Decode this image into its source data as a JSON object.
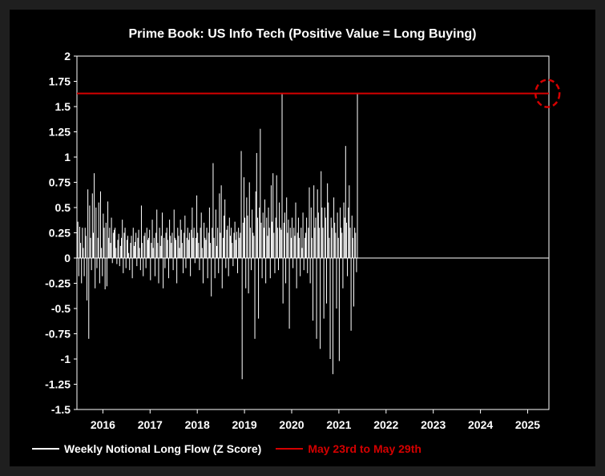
{
  "chart_data": {
    "type": "bar",
    "title": "Prime Book: US Info Tech (Positive Value = Long Buying)",
    "xlabel": "",
    "ylabel": "",
    "ylim": [
      -1.5,
      2
    ],
    "yticks": [
      -1.5,
      -1.25,
      -1,
      -0.75,
      -0.5,
      -0.25,
      0,
      0.25,
      0.5,
      0.75,
      1,
      1.25,
      1.5,
      1.75,
      2
    ],
    "ytick_labels": [
      "-1.5",
      "-1.25",
      "-1",
      "-0.75",
      "-0.5",
      "-0.25",
      "0",
      "0.25",
      "0.5",
      "0.75",
      "1",
      "1.25",
      "1.5",
      "1.75",
      "2"
    ],
    "xlim": [
      2015.45,
      2025.45
    ],
    "xticks": [
      2016,
      2017,
      2018,
      2019,
      2020,
      2021,
      2022,
      2023,
      2024,
      2025
    ],
    "xtick_labels": [
      "2016",
      "2017",
      "2018",
      "2019",
      "2020",
      "2021",
      "2022",
      "2023",
      "2024",
      "2025"
    ],
    "grid": false,
    "legend_position": "bottom",
    "series": [
      {
        "name": "Weekly Notional Long Flow (Z Score)",
        "color": "#ffffff",
        "x_start": 2015.47,
        "x_step": 0.01923,
        "values": [
          0.36,
          -0.18,
          0.31,
          0.15,
          -0.25,
          0.3,
          0.1,
          -0.18,
          0.3,
          0.22,
          -0.42,
          0.68,
          -0.8,
          0.52,
          0.2,
          -0.12,
          0.64,
          0.25,
          0.84,
          -0.3,
          0.5,
          -0.1,
          0.2,
          0.55,
          -0.25,
          0.66,
          0.1,
          -0.18,
          0.44,
          0.3,
          -0.31,
          0.35,
          -0.28,
          0.56,
          0.2,
          0.3,
          0.15,
          0.4,
          -0.05,
          0.25,
          0.28,
          0.3,
          0.1,
          -0.06,
          0.18,
          0.24,
          -0.08,
          0.12,
          0.2,
          0.38,
          -0.15,
          0.25,
          0.3,
          -0.1,
          0.18,
          0.22,
          0.05,
          -0.12,
          0.15,
          0.22,
          -0.2,
          0.3,
          0.12,
          0.16,
          0.25,
          -0.08,
          0.2,
          0.28,
          0.1,
          -0.12,
          0.52,
          0.15,
          -0.18,
          0.22,
          0.25,
          -0.1,
          0.3,
          0.18,
          0.2,
          0.28,
          -0.22,
          0.15,
          0.38,
          0.1,
          0.2,
          -0.18,
          0.25,
          0.48,
          0.15,
          -0.25,
          0.3,
          0.12,
          0.22,
          0.45,
          -0.3,
          0.2,
          -0.1,
          0.25,
          0.3,
          0.18,
          -0.2,
          0.38,
          0.22,
          0.15,
          0.25,
          -0.12,
          0.48,
          0.2,
          0.18,
          -0.25,
          0.3,
          0.22,
          0.1,
          0.38,
          0.28,
          0.15,
          -0.15,
          0.25,
          0.42,
          -0.1,
          0.2,
          0.3,
          0.18,
          0.25,
          -0.18,
          0.28,
          0.5,
          0.2,
          0.3,
          -0.05,
          0.2,
          0.62,
          0.25,
          0.15,
          -0.12,
          0.3,
          0.45,
          0.1,
          -0.25,
          0.35,
          0.2,
          0.18,
          0.3,
          -0.2,
          0.25,
          0.5,
          0.15,
          -0.38,
          0.3,
          0.94,
          0.2,
          -0.2,
          0.48,
          0.12,
          0.3,
          -0.15,
          0.64,
          0.25,
          0.72,
          -0.3,
          0.2,
          0.42,
          0.58,
          -0.1,
          0.28,
          0.32,
          -0.18,
          0.4,
          0.22,
          0.3,
          0.15,
          -0.08,
          0.25,
          0.36,
          0.18,
          0.26,
          -0.15,
          0.3,
          0.2,
          0.25,
          1.06,
          -1.2,
          0.35,
          0.8,
          0.4,
          -0.3,
          0.6,
          0.42,
          -0.35,
          0.75,
          0.3,
          -0.12,
          0.48,
          0.25,
          0.22,
          -0.8,
          0.66,
          1.04,
          0.4,
          -0.6,
          0.5,
          1.28,
          0.35,
          -0.2,
          0.45,
          0.3,
          0.58,
          -0.25,
          0.4,
          0.22,
          0.5,
          0.3,
          -0.2,
          0.72,
          0.36,
          0.84,
          0.25,
          -0.15,
          0.4,
          0.82,
          0.3,
          -0.12,
          0.55,
          0.3,
          0.28,
          1.63,
          -0.45,
          0.35,
          0.45,
          -0.25,
          0.6,
          0.25,
          0.38,
          -0.7,
          0.3,
          0.2,
          0.4,
          -0.1,
          0.3,
          0.22,
          0.55,
          -0.3,
          0.25,
          0.4,
          0.2,
          -0.18,
          0.3,
          0.1,
          0.45,
          -0.12,
          0.2,
          0.25,
          0.4,
          -0.15,
          0.3,
          0.7,
          -0.25,
          0.5,
          0.2,
          -0.62,
          0.72,
          0.3,
          0.4,
          -0.8,
          0.68,
          0.45,
          0.3,
          -0.9,
          0.86,
          0.5,
          0.3,
          -0.6,
          0.5,
          0.4,
          -0.45,
          0.74,
          0.55,
          0.2,
          -1.0,
          0.4,
          0.3,
          -1.15,
          0.6,
          0.35,
          0.25,
          -0.5,
          0.45,
          0.2,
          -1.02,
          0.5,
          0.3,
          0.25,
          -0.3,
          0.55,
          0.4,
          1.11,
          0.35,
          -0.18,
          0.5,
          0.72,
          0.3,
          -0.72,
          0.42,
          0.2,
          -0.48,
          0.3,
          0.25,
          -0.14,
          1.63
        ]
      },
      {
        "name": "May 23rd to May 29th",
        "type": "hline",
        "color": "#d40000",
        "y": 1.63
      }
    ],
    "annotations": [
      {
        "type": "dashed-circle",
        "color": "#d40000",
        "x": 2025.42,
        "y": 1.63
      }
    ]
  }
}
